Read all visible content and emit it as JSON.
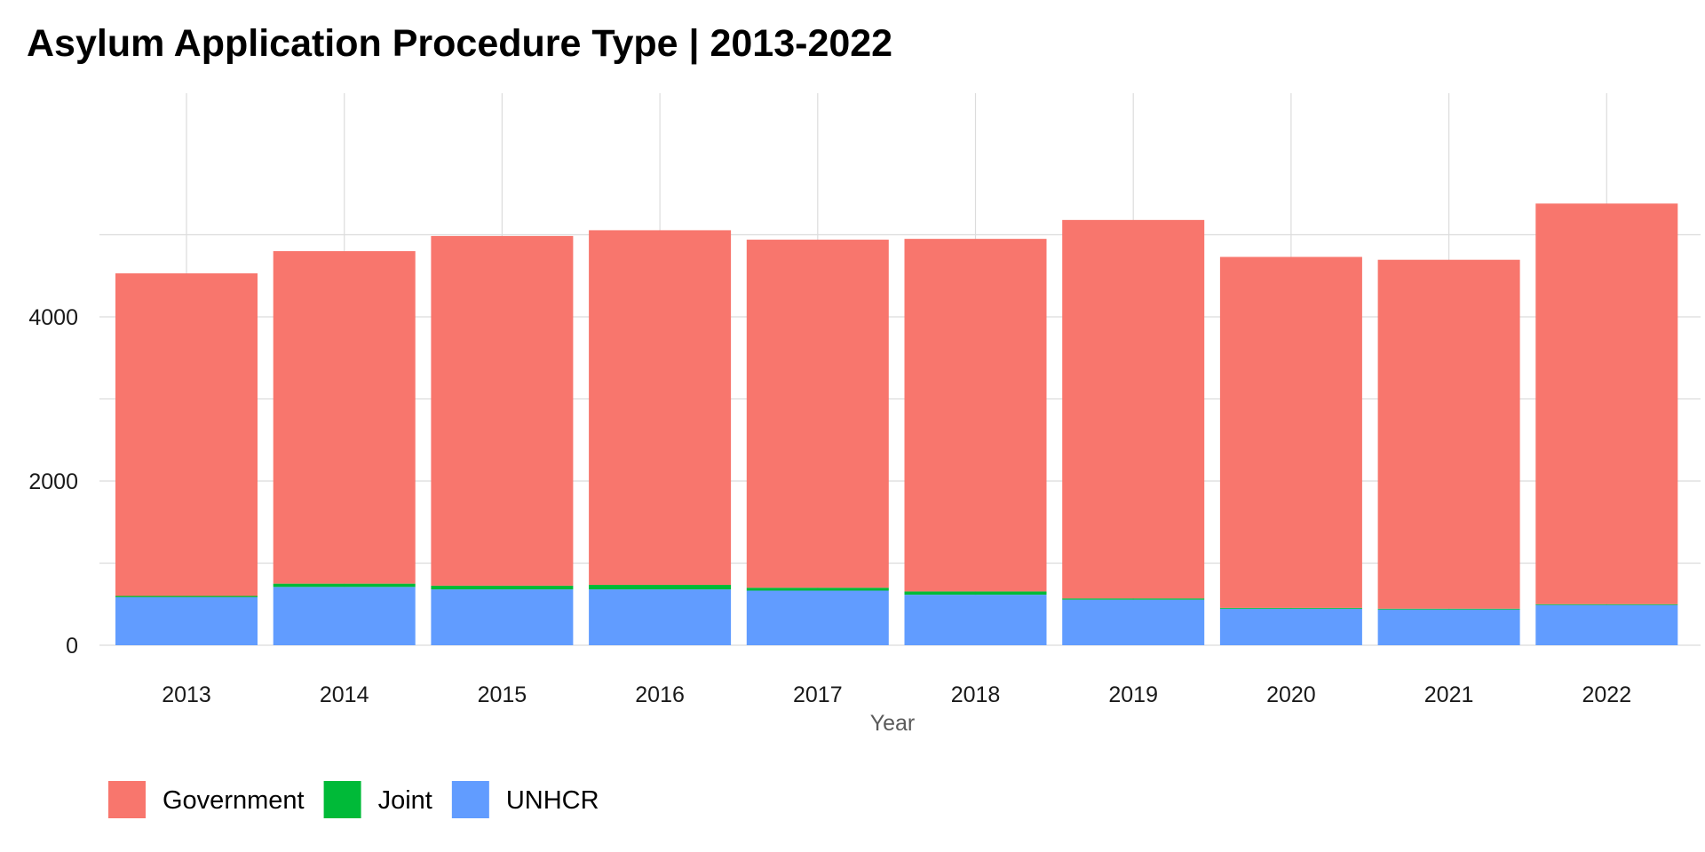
{
  "chart_data": {
    "type": "bar",
    "stacked": true,
    "title": "Asylum Application Procedure Type | 2013-2022",
    "xlabel": "Year",
    "ylabel": "",
    "ylim": [
      0,
      5600
    ],
    "y_ticks": [
      0,
      2000,
      4000
    ],
    "grid": true,
    "legend_position": "bottom-left",
    "categories": [
      "2013",
      "2014",
      "2015",
      "2016",
      "2017",
      "2018",
      "2019",
      "2020",
      "2021",
      "2022"
    ],
    "series": [
      {
        "name": "UNHCR",
        "color": "#619CFF",
        "values": [
          585,
          710,
          680,
          680,
          665,
          615,
          555,
          445,
          435,
          490
        ]
      },
      {
        "name": "Joint",
        "color": "#00BA38",
        "values": [
          15,
          40,
          45,
          55,
          35,
          40,
          15,
          10,
          10,
          10
        ]
      },
      {
        "name": "Government",
        "color": "#F8766D",
        "values": [
          3930,
          4050,
          4260,
          4320,
          4240,
          4295,
          4610,
          4275,
          4250,
          4880
        ]
      }
    ],
    "legend": [
      {
        "name": "Government",
        "color": "#F8766D"
      },
      {
        "name": "Joint",
        "color": "#00BA38"
      },
      {
        "name": "UNHCR",
        "color": "#619CFF"
      }
    ]
  }
}
